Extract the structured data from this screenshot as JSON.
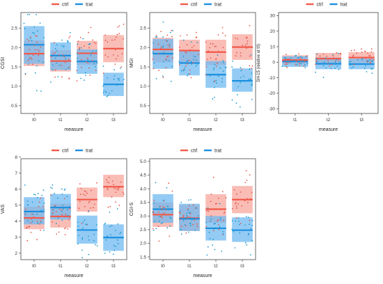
{
  "colors": {
    "ctrl": "#f25a4a",
    "trat": "#1a8fe0",
    "ctrl_fill": "#f7a79e",
    "trat_fill": "#6fb9f0"
  },
  "legend": {
    "ctrl_label": "ctrl",
    "trat_label": "trat"
  },
  "chart_data": [
    {
      "type": "box-jitter",
      "xlabel": "measure",
      "ylabel": "CGSI",
      "categories": [
        "t0",
        "t1",
        "t2",
        "t3"
      ],
      "ylim": [
        0.3,
        2.9
      ],
      "yticks": [
        0.5,
        1.0,
        1.5,
        2.0,
        2.5
      ],
      "ytick_labels": [
        "0.5",
        "1.0",
        "1.5",
        "2.0",
        "2.5"
      ],
      "legend_position": "top-center",
      "series": [
        {
          "name": "ctrl",
          "mean": [
            1.84,
            1.65,
            1.85,
            1.97
          ],
          "lower": [
            1.52,
            1.38,
            1.55,
            1.62
          ],
          "upper": [
            2.18,
            1.93,
            2.17,
            2.32
          ]
        },
        {
          "name": "trat",
          "mean": [
            2.07,
            1.79,
            1.64,
            1.05
          ],
          "lower": [
            1.58,
            1.42,
            1.32,
            0.75
          ],
          "upper": [
            2.55,
            2.13,
            1.95,
            1.35
          ]
        }
      ]
    },
    {
      "type": "box-jitter",
      "xlabel": "measure",
      "ylabel": "MGI",
      "categories": [
        "t0",
        "t1",
        "t2",
        "t3"
      ],
      "ylim": [
        0.3,
        2.9
      ],
      "yticks": [
        0.5,
        1.0,
        1.5,
        2.0,
        2.5
      ],
      "ytick_labels": [
        "0.5",
        "1.0",
        "1.5",
        "2.0",
        "2.5"
      ],
      "legend_position": "top-center",
      "series": [
        {
          "name": "ctrl",
          "mean": [
            1.95,
            1.92,
            1.88,
            2.01
          ],
          "lower": [
            1.62,
            1.62,
            1.55,
            1.68
          ],
          "upper": [
            2.25,
            2.2,
            2.2,
            2.34
          ]
        },
        {
          "name": "trat",
          "mean": [
            1.84,
            1.6,
            1.3,
            1.14
          ],
          "lower": [
            1.45,
            1.28,
            0.96,
            0.86
          ],
          "upper": [
            2.22,
            1.92,
            1.65,
            1.46
          ]
        }
      ]
    },
    {
      "type": "box-jitter",
      "xlabel": "measure",
      "ylabel": "SH-15 (relative at t0)",
      "categories": [
        "t1",
        "t2",
        "t3"
      ],
      "ylim": [
        -33,
        32
      ],
      "yticks": [
        -30,
        -20,
        -10,
        0,
        10,
        20,
        30
      ],
      "ytick_labels": [
        "-30",
        "-20",
        "-10",
        "0",
        "10",
        "20",
        "30"
      ],
      "legend_position": "top-center",
      "series": [
        {
          "name": "ctrl",
          "mean": [
            1.4,
            2.3,
            3.0
          ],
          "lower": [
            -1.5,
            -1.5,
            -0.5
          ],
          "upper": [
            4.5,
            6.0,
            6.5
          ]
        },
        {
          "name": "trat",
          "mean": [
            0.5,
            -1.0,
            -1.2
          ],
          "lower": [
            -3.0,
            -4.5,
            -4.5
          ],
          "upper": [
            3.8,
            3.0,
            2.3
          ]
        }
      ]
    },
    {
      "type": "box-jitter",
      "xlabel": "measure",
      "ylabel": "VAS",
      "categories": [
        "t0",
        "t1",
        "t2",
        "t3"
      ],
      "ylim": [
        1.6,
        7.9
      ],
      "yticks": [
        2,
        3,
        4,
        5,
        6,
        7,
        8
      ],
      "ytick_labels": [
        "2",
        "3",
        "4",
        "5",
        "6",
        "7",
        "8"
      ],
      "legend_position": "top-center",
      "series": [
        {
          "name": "ctrl",
          "mean": [
            4.2,
            4.3,
            5.35,
            6.15
          ],
          "lower": [
            3.5,
            3.6,
            4.6,
            5.5
          ],
          "upper": [
            4.9,
            5.1,
            6.1,
            6.9
          ]
        },
        {
          "name": "trat",
          "mean": [
            4.6,
            4.85,
            3.45,
            2.98
          ],
          "lower": [
            3.8,
            4.1,
            2.6,
            2.15
          ],
          "upper": [
            5.5,
            5.7,
            4.35,
            3.8
          ]
        }
      ]
    },
    {
      "type": "box-jitter",
      "xlabel": "measure",
      "ylabel": "CGI-S",
      "categories": [
        "t0",
        "t1",
        "t2",
        "t3"
      ],
      "ylim": [
        1.4,
        5.1
      ],
      "yticks": [
        1.5,
        2.0,
        2.5,
        3.0,
        3.5,
        4.0,
        4.5,
        5.0
      ],
      "ytick_labels": [
        "1.5",
        "2.0",
        "2.5",
        "3.0",
        "3.5",
        "4.0",
        "4.5",
        "5.0"
      ],
      "legend_position": "top-center",
      "series": [
        {
          "name": "ctrl",
          "mean": [
            3.05,
            2.92,
            3.25,
            3.6
          ],
          "lower": [
            2.6,
            2.45,
            2.75,
            3.1
          ],
          "upper": [
            3.5,
            3.4,
            3.8,
            4.1
          ]
        },
        {
          "name": "trat",
          "mean": [
            3.25,
            2.9,
            2.55,
            2.48
          ],
          "lower": [
            2.75,
            2.45,
            2.1,
            2.05
          ],
          "upper": [
            3.8,
            3.45,
            3.0,
            2.95
          ]
        }
      ]
    }
  ]
}
